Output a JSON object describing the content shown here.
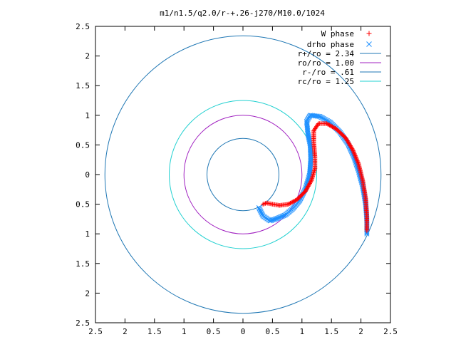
{
  "chart_data": {
    "type": "scatter",
    "title": "m1/n1.5/q2.0/r-+.26-j270/M10.0/1024",
    "xlim": [
      -2.5,
      2.5
    ],
    "ylim": [
      -2.5,
      2.5
    ],
    "x_ticks": [
      -2.5,
      -2,
      -1.5,
      -1,
      -0.5,
      0,
      0.5,
      1,
      1.5,
      2,
      2.5
    ],
    "x_tick_labels": [
      "2.5",
      "2",
      "1.5",
      "1",
      "0.5",
      "0",
      "0.5",
      "1",
      "1.5",
      "2",
      "2.5"
    ],
    "y_ticks": [
      2.5,
      2,
      1.5,
      1,
      0.5,
      0,
      -0.5,
      -1,
      -1.5,
      -2,
      -2.5
    ],
    "y_tick_labels": [
      "2.5",
      "2",
      "1.5",
      "1",
      "0.5",
      "0",
      "0.5",
      "1",
      "1.5",
      "2",
      "2.5"
    ],
    "grid": false,
    "legend_position": "top-right",
    "circles": [
      {
        "name": "r+/ro = 2.34",
        "radius": 2.34,
        "color": "#1f77b4"
      },
      {
        "name": "ro/ro = 1.00",
        "radius": 1.0,
        "color": "#a020c0"
      },
      {
        "name": "r-/ro = .61",
        "radius": 0.61,
        "color": "#1f77b4"
      },
      {
        "name": "rc/ro = 1.25",
        "radius": 1.25,
        "color": "#20d0d0"
      }
    ],
    "series": [
      {
        "name": "W phase",
        "marker": "+",
        "color": "#ff0000",
        "points": [
          [
            2.1,
            -0.95
          ],
          [
            2.1,
            -0.7
          ],
          [
            2.08,
            -0.4
          ],
          [
            2.03,
            -0.1
          ],
          [
            1.96,
            0.18
          ],
          [
            1.86,
            0.42
          ],
          [
            1.74,
            0.62
          ],
          [
            1.58,
            0.77
          ],
          [
            1.42,
            0.86
          ],
          [
            1.28,
            0.86
          ],
          [
            1.2,
            0.74
          ],
          [
            1.2,
            0.55
          ],
          [
            1.22,
            0.3
          ],
          [
            1.22,
            0.1
          ],
          [
            1.16,
            -0.1
          ],
          [
            1.06,
            -0.28
          ],
          [
            0.92,
            -0.42
          ],
          [
            0.77,
            -0.5
          ],
          [
            0.62,
            -0.52
          ],
          [
            0.5,
            -0.5
          ],
          [
            0.4,
            -0.48
          ],
          [
            0.34,
            -0.5
          ]
        ]
      },
      {
        "name": "drho phase",
        "marker": "x",
        "color": "#1e90ff",
        "points": [
          [
            2.1,
            -1.0
          ],
          [
            2.1,
            -0.78
          ],
          [
            2.08,
            -0.5
          ],
          [
            2.03,
            -0.2
          ],
          [
            1.96,
            0.06
          ],
          [
            1.88,
            0.3
          ],
          [
            1.78,
            0.52
          ],
          [
            1.64,
            0.72
          ],
          [
            1.48,
            0.88
          ],
          [
            1.3,
            0.98
          ],
          [
            1.14,
            1.0
          ],
          [
            1.08,
            0.9
          ],
          [
            1.1,
            0.7
          ],
          [
            1.14,
            0.5
          ],
          [
            1.15,
            0.26
          ],
          [
            1.13,
            0.0
          ],
          [
            1.06,
            -0.24
          ],
          [
            0.96,
            -0.44
          ],
          [
            0.84,
            -0.58
          ],
          [
            0.72,
            -0.68
          ],
          [
            0.58,
            -0.74
          ],
          [
            0.46,
            -0.78
          ],
          [
            0.34,
            -0.7
          ],
          [
            0.27,
            -0.56
          ]
        ]
      }
    ]
  }
}
